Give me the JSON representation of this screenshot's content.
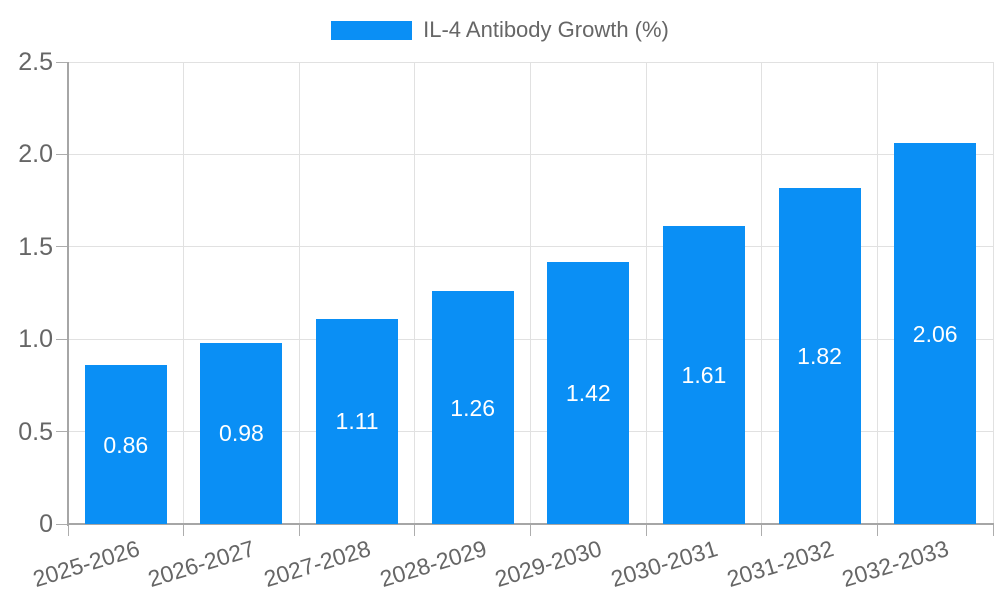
{
  "legend": {
    "label": "IL-4 Antibody Growth (%)"
  },
  "chart_data": {
    "type": "bar",
    "title": "",
    "categories": [
      "2025-2026",
      "2026-2027",
      "2027-2028",
      "2028-2029",
      "2029-2030",
      "2030-2031",
      "2031-2032",
      "2032-2033"
    ],
    "series": [
      {
        "name": "IL-4 Antibody Growth (%)",
        "values": [
          0.86,
          0.98,
          1.11,
          1.26,
          1.42,
          1.61,
          1.82,
          2.06
        ]
      }
    ],
    "value_labels": [
      "0.86",
      "0.98",
      "1.11",
      "1.26",
      "1.42",
      "1.61",
      "1.82",
      "2.06"
    ],
    "xlabel": "",
    "ylabel": "",
    "ylim": [
      0,
      2.5
    ],
    "ytick_step": 0.5,
    "ytick_labels": [
      "0",
      "0.5",
      "1.0",
      "1.5",
      "2.0",
      "2.5"
    ],
    "grid": true,
    "legend_position": "top",
    "xtick_rotation_deg": -17,
    "colors": {
      "bar": "#0A8FF5",
      "grid_line": "#E1E1E1",
      "axis_line": "#A6A6A6",
      "tick_mark": "#ADADAD",
      "tick_text": "#666666",
      "legend_text": "#666666",
      "value_label_text": "#FFFFFF",
      "background": "#FFFFFF"
    }
  }
}
